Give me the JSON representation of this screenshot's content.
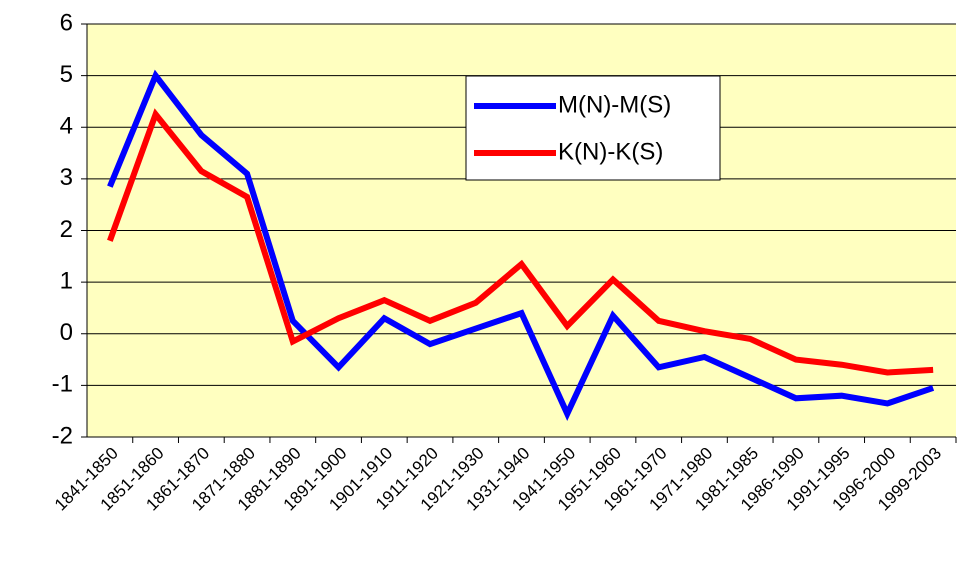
{
  "chart_data": {
    "type": "line",
    "categories": [
      "1841-1850",
      "1851-1860",
      "1861-1870",
      "1871-1880",
      "1881-1890",
      "1891-1900",
      "1901-1910",
      "1911-1920",
      "1921-1930",
      "1931-1940",
      "1941-1950",
      "1951-1960",
      "1961-1970",
      "1971-1980",
      "1981-1985",
      "1986-1990",
      "1991-1995",
      "1996-2000",
      "1999-2003"
    ],
    "series": [
      {
        "name": "M(N)-M(S)",
        "color": "#0000ff",
        "values": [
          2.85,
          5.0,
          3.85,
          3.1,
          0.25,
          -0.65,
          0.3,
          -0.2,
          0.1,
          0.4,
          -1.55,
          0.35,
          -0.65,
          -0.45,
          -0.85,
          -1.25,
          -1.2,
          -1.35,
          -1.05
        ]
      },
      {
        "name": "K(N)-K(S)",
        "color": "#ff0000",
        "values": [
          1.8,
          4.25,
          3.15,
          2.65,
          -0.15,
          0.3,
          0.65,
          0.25,
          0.6,
          1.35,
          0.15,
          1.05,
          0.25,
          0.05,
          -0.1,
          -0.5,
          -0.6,
          -0.75,
          -0.7
        ]
      }
    ],
    "ylim": [
      -2,
      6
    ],
    "yticks": [
      -2,
      -1,
      0,
      1,
      2,
      3,
      4,
      5,
      6
    ],
    "grid": true,
    "legend": "upper center",
    "background": "#ffffc0"
  }
}
